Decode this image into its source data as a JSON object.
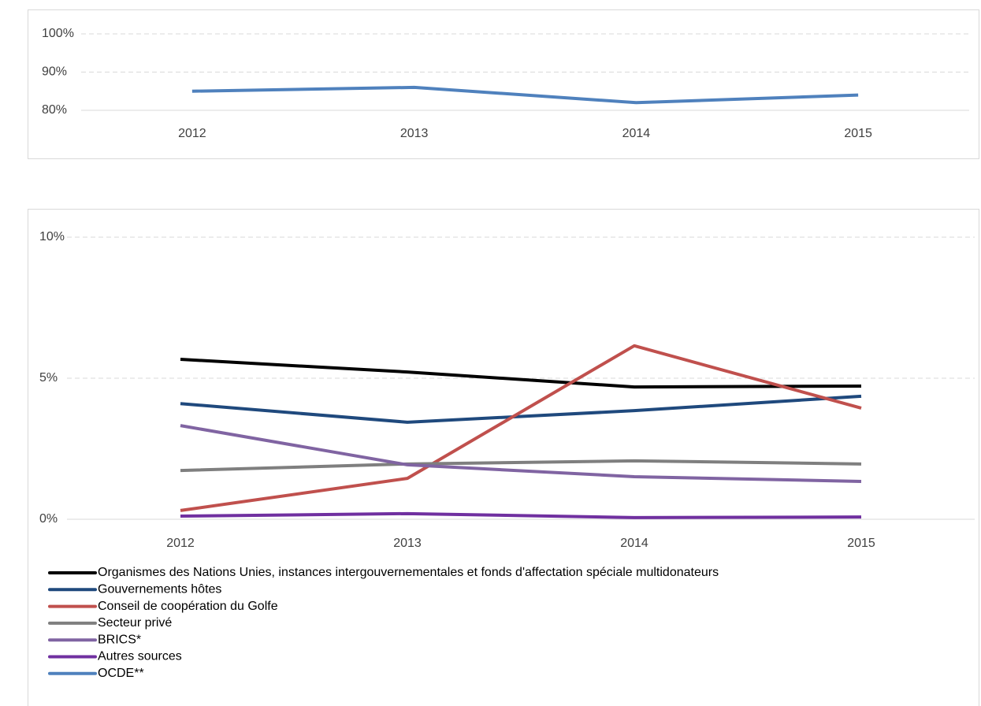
{
  "chart_data": [
    {
      "type": "line",
      "categories": [
        "2012",
        "2013",
        "2014",
        "2015"
      ],
      "series": [
        {
          "name": "OCDE**",
          "color": "#4f81bd",
          "values": [
            85,
            86,
            82,
            84
          ]
        }
      ],
      "ylim": [
        80,
        100
      ],
      "yticks": [
        {
          "value": 80,
          "label": "80%"
        },
        {
          "value": 90,
          "label": "90%"
        },
        {
          "value": 100,
          "label": "100%"
        }
      ],
      "grid": true
    },
    {
      "type": "line",
      "categories": [
        "2012",
        "2013",
        "2014",
        "2015"
      ],
      "series": [
        {
          "name": "Organismes des Nations Unies, instances intergouvernementales et fonds d'affectation spéciale multidonateurs",
          "color": "#000000",
          "values": [
            5.67,
            5.22,
            4.69,
            4.72
          ]
        },
        {
          "name": "Gouvernements hôtes",
          "color": "#1f497d",
          "values": [
            4.1,
            3.44,
            3.85,
            4.36
          ]
        },
        {
          "name": "Conseil de coopération du Golfe",
          "color": "#c0504d",
          "values": [
            0.31,
            1.45,
            6.15,
            3.94
          ]
        },
        {
          "name": "Secteur privé",
          "color": "#7f7f7f",
          "values": [
            1.73,
            1.96,
            2.07,
            1.96
          ]
        },
        {
          "name": "BRICS*",
          "color": "#8064a2",
          "values": [
            3.32,
            1.93,
            1.51,
            1.34
          ]
        },
        {
          "name": "Autres sources",
          "color": "#7030a0",
          "values": [
            0.11,
            0.2,
            0.06,
            0.08
          ]
        }
      ],
      "ylim": [
        0,
        10
      ],
      "yticks": [
        {
          "value": 0,
          "label": "0%"
        },
        {
          "value": 5,
          "label": "5%"
        },
        {
          "value": 10,
          "label": "10%"
        }
      ],
      "grid": true
    }
  ]
}
